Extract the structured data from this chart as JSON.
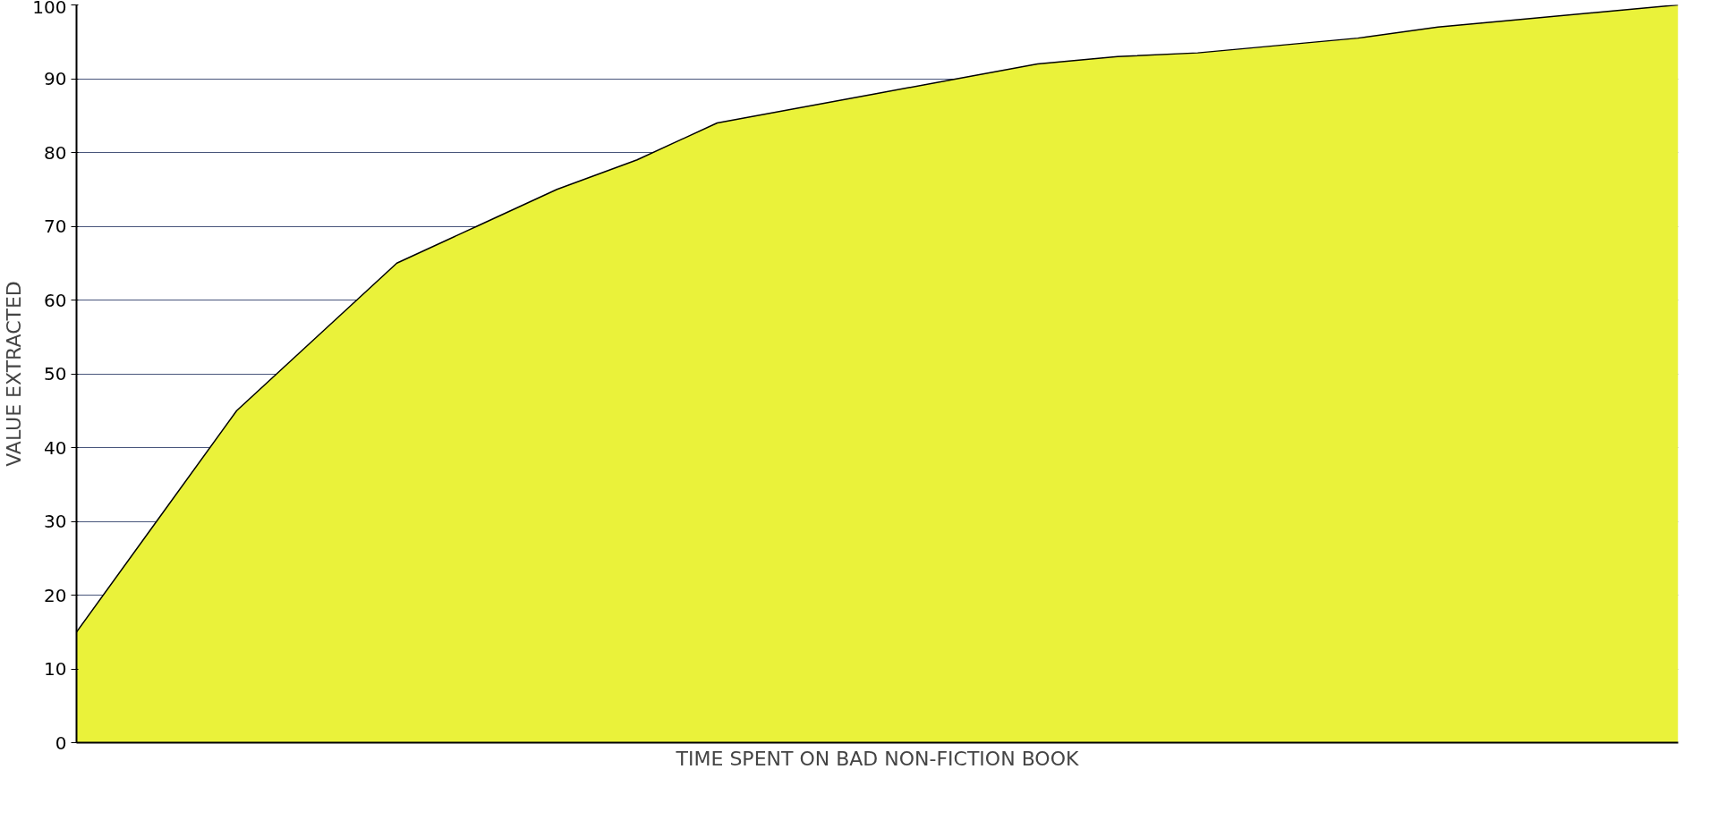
{
  "chart_data": {
    "type": "area",
    "xlabel": "TIME SPENT ON BAD NON-FICTION BOOK",
    "ylabel": "VALUE EXTRACTED",
    "categories": [
      null,
      null,
      null,
      null,
      null,
      null,
      null,
      null,
      null,
      null,
      null,
      null,
      null,
      null,
      null,
      null,
      null,
      null,
      null,
      null,
      null
    ],
    "series": [
      {
        "color": "#eaf23a",
        "values": [
          15,
          30,
          45,
          55,
          65,
          70,
          75,
          79,
          84,
          86,
          88,
          90,
          92,
          93,
          93.5,
          94.5,
          95.5,
          97,
          98,
          99,
          100
        ]
      }
    ],
    "ylim": [
      0,
      100
    ],
    "yticks": [
      0,
      10,
      20,
      30,
      40,
      50,
      60,
      70,
      80,
      90,
      100
    ],
    "grid": "y"
  }
}
